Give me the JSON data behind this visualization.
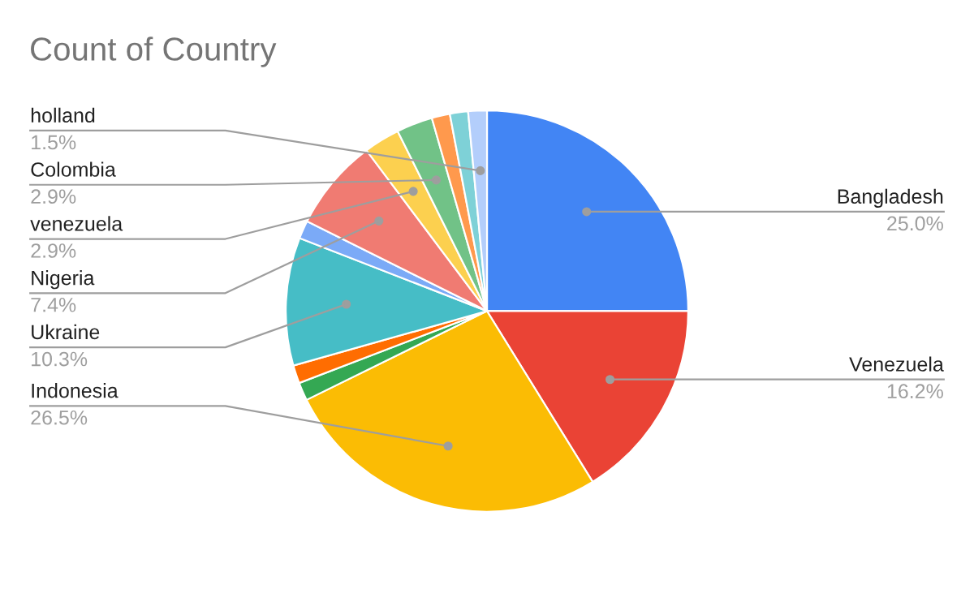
{
  "chart_data": {
    "type": "pie",
    "title": "Count of Country",
    "categories": [
      "Bangladesh",
      "Venezuela",
      "Indonesia",
      null,
      null,
      "Ukraine",
      null,
      "Nigeria",
      "venezuela",
      "Colombia",
      null,
      null,
      "holland"
    ],
    "values": [
      25.0,
      16.2,
      26.5,
      1.46,
      1.46,
      10.3,
      1.46,
      7.4,
      2.9,
      2.9,
      1.46,
      1.46,
      1.5
    ],
    "value_labels": [
      "25.0%",
      "16.2%",
      "26.5%",
      null,
      null,
      "10.3%",
      null,
      "7.4%",
      "2.9%",
      "2.9%",
      null,
      null,
      "1.5%"
    ],
    "colors": [
      "#4285f4",
      "#ea4335",
      "#fbbc04",
      "#34a853",
      "#ff6d01",
      "#46bdc6",
      "#7baaf7",
      "#f07b72",
      "#fcd04f",
      "#71c287",
      "#ff994d",
      "#7ed1d7",
      "#b3cefb"
    ],
    "legend": false
  }
}
